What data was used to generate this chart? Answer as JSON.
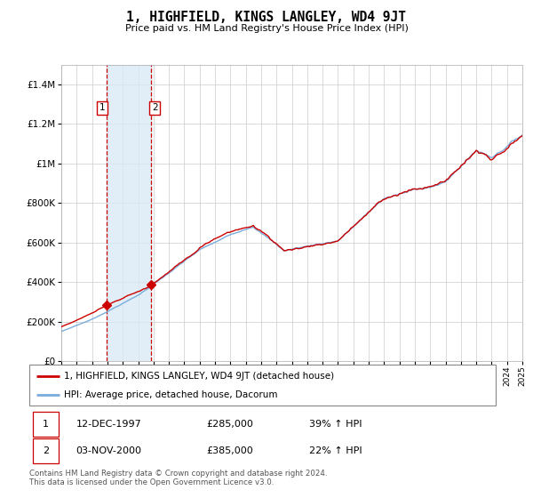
{
  "title": "1, HIGHFIELD, KINGS LANGLEY, WD4 9JT",
  "subtitle": "Price paid vs. HM Land Registry's House Price Index (HPI)",
  "hpi_label": "HPI: Average price, detached house, Dacorum",
  "property_label": "1, HIGHFIELD, KINGS LANGLEY, WD4 9JT (detached house)",
  "sale1_date": "12-DEC-1997",
  "sale1_price": 285000,
  "sale1_hpi": "39% ↑ HPI",
  "sale2_date": "03-NOV-2000",
  "sale2_price": 385000,
  "sale2_hpi": "22% ↑ HPI",
  "footer": "Contains HM Land Registry data © Crown copyright and database right 2024.\nThis data is licensed under the Open Government Licence v3.0.",
  "ylim": [
    0,
    1500000
  ],
  "yticks": [
    0,
    200000,
    400000,
    600000,
    800000,
    1000000,
    1200000,
    1400000
  ],
  "ytick_labels": [
    "£0",
    "£200K",
    "£400K",
    "£600K",
    "£800K",
    "£1M",
    "£1.2M",
    "£1.4M"
  ],
  "red_color": "#cc0000",
  "blue_color": "#7aaddb",
  "vline1_x": 1997.95,
  "vline2_x": 2000.84,
  "sale1_marker_year": 1997.95,
  "sale1_marker_price": 285000,
  "sale2_marker_year": 2000.84,
  "sale2_marker_price": 385000,
  "xmin": 1995,
  "xmax": 2025
}
